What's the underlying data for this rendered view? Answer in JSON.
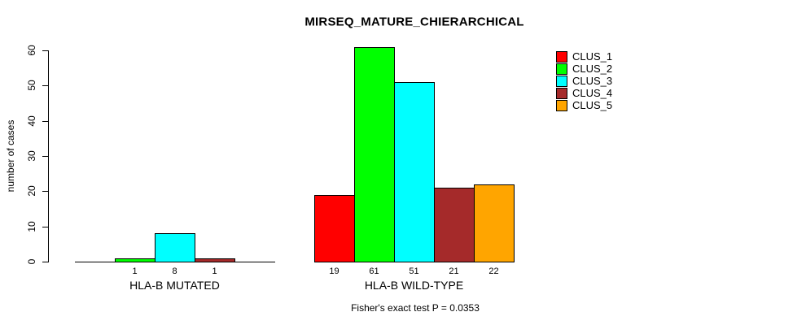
{
  "chart_data": {
    "type": "bar",
    "title": "MIRSEQ_MATURE_CHIERARCHICAL",
    "ylabel": "number of cases",
    "xlabel": "",
    "ylim": [
      0,
      60
    ],
    "yticks": [
      0,
      10,
      20,
      30,
      40,
      50,
      60
    ],
    "grid": false,
    "legend_position": "top-right",
    "series_names": [
      "CLUS_1",
      "CLUS_2",
      "CLUS_3",
      "CLUS_4",
      "CLUS_5"
    ],
    "series_colors": [
      "#FF0000",
      "#00FF00",
      "#00FFFF",
      "#A52A2A",
      "#FFA500"
    ],
    "groups": [
      {
        "label": "HLA-B MUTATED",
        "values": [
          0,
          1,
          8,
          1,
          0
        ],
        "shown_bar_labels": [
          "",
          "1",
          "8",
          "1",
          ""
        ]
      },
      {
        "label": "HLA-B WILD-TYPE",
        "values": [
          19,
          61,
          51,
          21,
          22
        ],
        "shown_bar_labels": [
          "19",
          "61",
          "51",
          "21",
          "22"
        ]
      }
    ],
    "annotation": "Fisher's exact test P = 0.0353"
  },
  "legend": {
    "items": [
      {
        "label": "CLUS_1",
        "color": "#FF0000"
      },
      {
        "label": "CLUS_2",
        "color": "#00FF00"
      },
      {
        "label": "CLUS_3",
        "color": "#00FFFF"
      },
      {
        "label": "CLUS_4",
        "color": "#A52A2A"
      },
      {
        "label": "CLUS_5",
        "color": "#FFA500"
      }
    ]
  },
  "colors": {
    "background": "#FFFFFF",
    "axis": "#000000",
    "text": "#000000",
    "bar_border": "#000000"
  }
}
